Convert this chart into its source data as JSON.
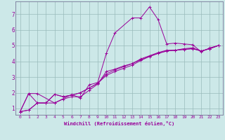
{
  "xlabel": "Windchill (Refroidissement éolien,°C)",
  "bg_color": "#cce8e8",
  "line_color": "#990099",
  "grid_color": "#99bbbb",
  "xlim": [
    -0.5,
    23.5
  ],
  "ylim": [
    0.6,
    7.8
  ],
  "xticks": [
    0,
    1,
    2,
    3,
    4,
    5,
    6,
    7,
    8,
    9,
    10,
    11,
    12,
    13,
    14,
    15,
    16,
    17,
    18,
    19,
    20,
    21,
    22,
    23
  ],
  "yticks": [
    1,
    2,
    3,
    4,
    5,
    6,
    7
  ],
  "lines": [
    {
      "x": [
        0,
        1,
        2,
        4,
        6,
        7,
        8,
        9,
        10,
        11,
        13,
        14,
        15,
        16,
        17,
        18,
        19,
        20,
        21,
        22,
        23
      ],
      "y": [
        0.8,
        1.95,
        1.95,
        1.35,
        1.9,
        1.65,
        2.5,
        2.65,
        4.5,
        5.8,
        6.75,
        6.75,
        7.45,
        6.65,
        5.1,
        5.15,
        5.1,
        5.05,
        4.6,
        4.85,
        5.0
      ]
    },
    {
      "x": [
        0,
        1,
        2,
        3,
        4,
        5,
        6,
        7,
        8,
        9,
        10,
        11,
        12,
        13,
        14,
        15,
        16,
        17,
        18,
        19,
        20,
        21,
        22,
        23
      ],
      "y": [
        0.8,
        1.95,
        1.35,
        1.35,
        1.35,
        1.6,
        1.75,
        1.75,
        2.15,
        2.55,
        3.35,
        3.5,
        3.7,
        3.85,
        4.15,
        4.35,
        4.55,
        4.7,
        4.7,
        4.8,
        4.85,
        4.65,
        4.8,
        5.0
      ]
    },
    {
      "x": [
        0,
        1,
        2,
        3,
        4,
        5,
        6,
        7,
        8,
        9,
        10,
        11,
        12,
        13,
        14,
        15,
        16,
        17,
        18,
        19,
        20,
        21,
        22,
        23
      ],
      "y": [
        0.8,
        0.9,
        1.35,
        1.35,
        1.9,
        1.75,
        1.85,
        2.0,
        2.3,
        2.6,
        3.1,
        3.35,
        3.55,
        3.75,
        4.05,
        4.3,
        4.5,
        4.65,
        4.7,
        4.75,
        4.8,
        4.65,
        4.8,
        5.0
      ]
    },
    {
      "x": [
        0,
        1,
        2,
        3,
        4,
        5,
        6,
        7,
        8,
        9,
        10,
        11,
        12,
        13,
        14,
        15,
        16,
        17,
        18,
        19,
        20,
        21,
        22,
        23
      ],
      "y": [
        0.8,
        0.9,
        1.35,
        1.35,
        1.9,
        1.75,
        1.85,
        2.0,
        2.3,
        2.6,
        3.2,
        3.45,
        3.65,
        3.85,
        4.1,
        4.3,
        4.5,
        4.65,
        4.7,
        4.75,
        4.8,
        4.65,
        4.8,
        5.0
      ]
    }
  ]
}
